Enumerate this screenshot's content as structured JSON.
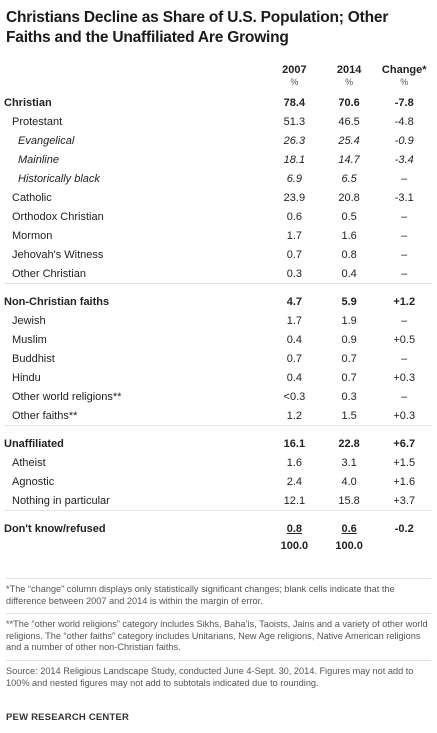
{
  "title": "Christians Decline as Share of U.S. Population; Other Faiths and the Unaffiliated Are Growing",
  "table": {
    "columns": [
      "2007",
      "2014",
      "Change*"
    ],
    "units": [
      "%",
      "%",
      "%"
    ],
    "sections": [
      {
        "label": "Christian",
        "values": [
          "78.4",
          "70.6",
          "-7.8"
        ],
        "items": [
          {
            "label": "Protestant",
            "values": [
              "51.3",
              "46.5",
              "-4.8"
            ],
            "items": [
              {
                "label": "Evangelical",
                "values": [
                  "26.3",
                  "25.4",
                  "-0.9"
                ]
              },
              {
                "label": "Mainline",
                "values": [
                  "18.1",
                  "14.7",
                  "-3.4"
                ]
              },
              {
                "label": "Historically black",
                "values": [
                  "6.9",
                  "6.5",
                  "–"
                ]
              }
            ]
          },
          {
            "label": "Catholic",
            "values": [
              "23.9",
              "20.8",
              "-3.1"
            ]
          },
          {
            "label": "Orthodox Christian",
            "values": [
              "0.6",
              "0.5",
              "–"
            ]
          },
          {
            "label": "Mormon",
            "values": [
              "1.7",
              "1.6",
              "–"
            ]
          },
          {
            "label": "Jehovah's Witness",
            "values": [
              "0.7",
              "0.8",
              "–"
            ]
          },
          {
            "label": "Other Christian",
            "values": [
              "0.3",
              "0.4",
              "–"
            ]
          }
        ]
      },
      {
        "label": "Non-Christian faiths",
        "values": [
          "4.7",
          "5.9",
          "+1.2"
        ],
        "items": [
          {
            "label": "Jewish",
            "values": [
              "1.7",
              "1.9",
              "–"
            ]
          },
          {
            "label": "Muslim",
            "values": [
              "0.4",
              "0.9",
              "+0.5"
            ]
          },
          {
            "label": "Buddhist",
            "values": [
              "0.7",
              "0.7",
              "–"
            ]
          },
          {
            "label": "Hindu",
            "values": [
              "0.4",
              "0.7",
              "+0.3"
            ]
          },
          {
            "label": "Other world religions**",
            "values": [
              "<0.3",
              "0.3",
              "–"
            ]
          },
          {
            "label": "Other faiths**",
            "values": [
              "1.2",
              "1.5",
              "+0.3"
            ]
          }
        ]
      },
      {
        "label": "Unaffiliated",
        "values": [
          "16.1",
          "22.8",
          "+6.7"
        ],
        "items": [
          {
            "label": "Atheist",
            "values": [
              "1.6",
              "3.1",
              "+1.5"
            ]
          },
          {
            "label": "Agnostic",
            "values": [
              "2.4",
              "4.0",
              "+1.6"
            ]
          },
          {
            "label": "Nothing in particular",
            "values": [
              "12.1",
              "15.8",
              "+3.7"
            ]
          }
        ]
      },
      {
        "label": "Don't know/refused",
        "values": [
          "0.8",
          "0.6",
          "-0.2"
        ]
      }
    ],
    "total": {
      "values": [
        "100.0",
        "100.0"
      ]
    }
  },
  "notes": [
    "*The “change” column displays only statistically significant changes; blank cells indicate that the difference between 2007 and 2014 is within the margin of error.",
    "**The “other world religions” category includes Sikhs, Baha’is, Taoists, Jains and a variety of other world religions. The “other faiths” category includes Unitarians, New Age religions, Native American religions and a number of other non-Christian faiths."
  ],
  "source": "Source: 2014 Religious Landscape Study, conducted June 4-Sept. 30, 2014. Figures may not add to 100% and nested figures may not add to subtotals indicated due to rounding.",
  "footer": "PEW RESEARCH CENTER"
}
